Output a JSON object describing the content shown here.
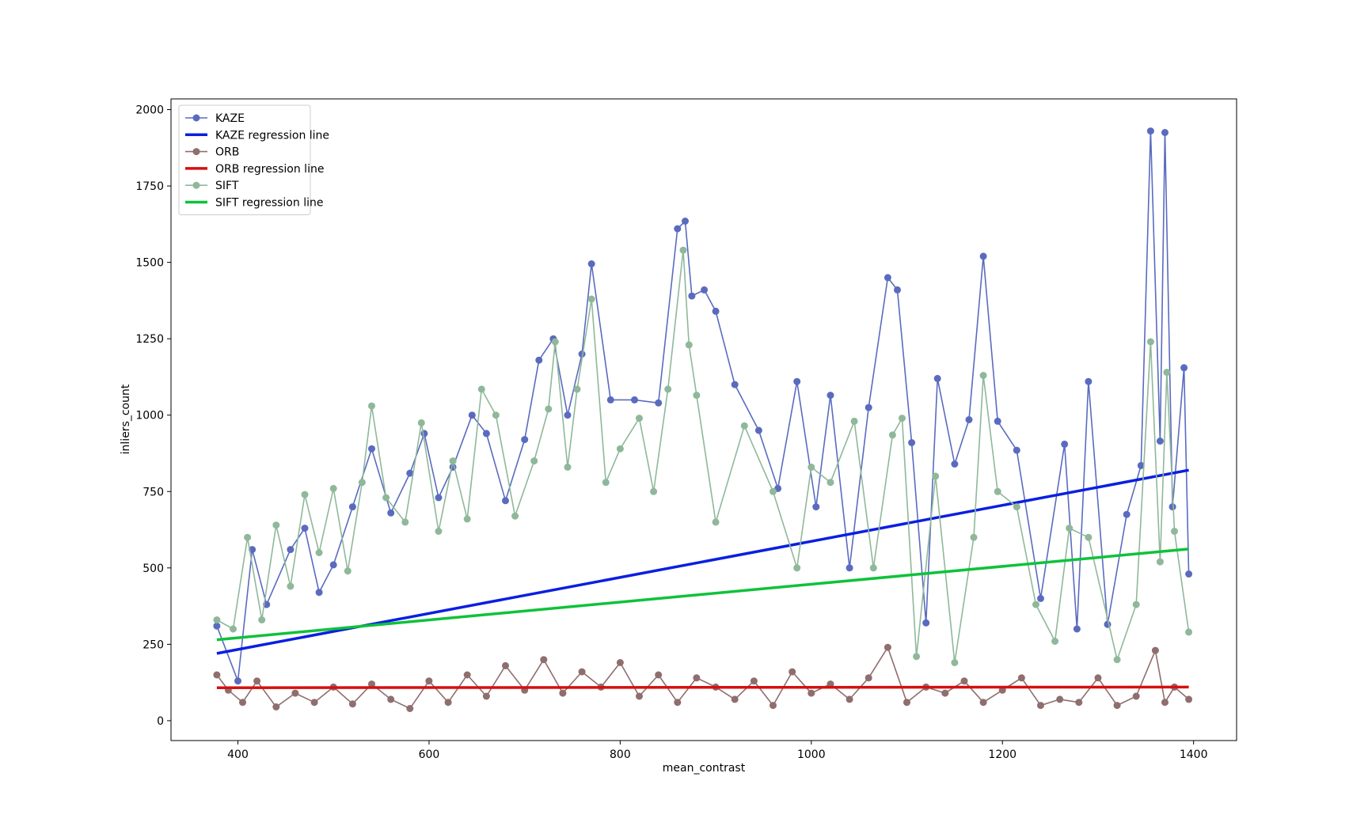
{
  "chart_data": {
    "type": "line",
    "xlabel": "mean_contrast",
    "ylabel": "inliers_count",
    "xlim": [
      330,
      1445
    ],
    "ylim": [
      -65,
      2035
    ],
    "xticks": [
      400,
      600,
      800,
      1000,
      1200,
      1400
    ],
    "yticks": [
      0,
      250,
      500,
      750,
      1000,
      1250,
      1500,
      1750,
      2000
    ],
    "grid": false,
    "legend_position": "top-left",
    "series": [
      {
        "name": "KAZE",
        "kind": "line-markers",
        "color": "#5a6bbf",
        "x": [
          378,
          400,
          415,
          430,
          455,
          470,
          485,
          500,
          520,
          540,
          560,
          580,
          595,
          610,
          625,
          645,
          660,
          680,
          700,
          715,
          730,
          745,
          760,
          770,
          790,
          815,
          840,
          860,
          868,
          875,
          888,
          900,
          920,
          945,
          965,
          985,
          1005,
          1020,
          1040,
          1060,
          1080,
          1090,
          1105,
          1120,
          1132,
          1150,
          1165,
          1180,
          1195,
          1215,
          1240,
          1265,
          1278,
          1290,
          1310,
          1330,
          1345,
          1355,
          1365,
          1370,
          1378,
          1390,
          1395
        ],
        "y": [
          310,
          130,
          560,
          380,
          560,
          630,
          420,
          510,
          700,
          890,
          680,
          810,
          940,
          730,
          830,
          1000,
          940,
          720,
          920,
          1180,
          1250,
          1000,
          1200,
          1495,
          1050,
          1050,
          1040,
          1610,
          1635,
          1390,
          1410,
          1340,
          1100,
          950,
          760,
          1110,
          700,
          1065,
          500,
          1025,
          1450,
          1410,
          910,
          320,
          1120,
          840,
          985,
          1520,
          980,
          885,
          400,
          905,
          300,
          1110,
          315,
          675,
          835,
          1930,
          915,
          1925,
          700,
          1155,
          480
        ]
      },
      {
        "name": "KAZE regression line",
        "kind": "line",
        "color": "#0a1fe0",
        "x": [
          378,
          1395
        ],
        "y": [
          220,
          820
        ]
      },
      {
        "name": "ORB",
        "kind": "line-markers",
        "color": "#8f6e6e",
        "x": [
          378,
          390,
          405,
          420,
          440,
          460,
          480,
          500,
          520,
          540,
          560,
          580,
          600,
          620,
          640,
          660,
          680,
          700,
          720,
          740,
          760,
          780,
          800,
          820,
          840,
          860,
          880,
          900,
          920,
          940,
          960,
          980,
          1000,
          1020,
          1040,
          1060,
          1080,
          1100,
          1120,
          1140,
          1160,
          1180,
          1200,
          1220,
          1240,
          1260,
          1280,
          1300,
          1320,
          1340,
          1360,
          1370,
          1380,
          1395
        ],
        "y": [
          150,
          100,
          60,
          130,
          45,
          90,
          60,
          110,
          55,
          120,
          70,
          40,
          130,
          60,
          150,
          80,
          180,
          100,
          200,
          90,
          160,
          110,
          190,
          80,
          150,
          60,
          140,
          110,
          70,
          130,
          50,
          160,
          90,
          120,
          70,
          140,
          240,
          60,
          110,
          90,
          130,
          60,
          100,
          140,
          50,
          70,
          60,
          140,
          50,
          80,
          230,
          60,
          110,
          70
        ]
      },
      {
        "name": "ORB regression line",
        "kind": "line",
        "color": "#d60f0f",
        "x": [
          378,
          1395
        ],
        "y": [
          108,
          110
        ]
      },
      {
        "name": "SIFT",
        "kind": "line-markers",
        "color": "#8fb89a",
        "x": [
          378,
          395,
          410,
          425,
          440,
          455,
          470,
          485,
          500,
          515,
          530,
          540,
          555,
          575,
          592,
          610,
          625,
          640,
          655,
          670,
          690,
          710,
          725,
          732,
          745,
          755,
          770,
          785,
          800,
          820,
          835,
          850,
          866,
          872,
          880,
          900,
          930,
          960,
          985,
          1000,
          1020,
          1045,
          1065,
          1085,
          1095,
          1110,
          1130,
          1150,
          1170,
          1180,
          1195,
          1215,
          1235,
          1255,
          1270,
          1290,
          1320,
          1340,
          1355,
          1365,
          1372,
          1380,
          1395
        ],
        "y": [
          330,
          300,
          600,
          330,
          640,
          440,
          740,
          550,
          760,
          490,
          780,
          1030,
          730,
          650,
          975,
          620,
          850,
          660,
          1085,
          1000,
          670,
          850,
          1020,
          1240,
          830,
          1085,
          1380,
          780,
          890,
          990,
          750,
          1085,
          1540,
          1230,
          1065,
          650,
          965,
          750,
          500,
          830,
          780,
          980,
          500,
          935,
          990,
          210,
          800,
          190,
          600,
          1130,
          750,
          700,
          380,
          260,
          630,
          600,
          200,
          380,
          1240,
          520,
          1140,
          620,
          290
        ]
      },
      {
        "name": "SIFT regression line",
        "kind": "line",
        "color": "#0fc23a",
        "x": [
          378,
          1395
        ],
        "y": [
          265,
          562
        ]
      }
    ]
  }
}
